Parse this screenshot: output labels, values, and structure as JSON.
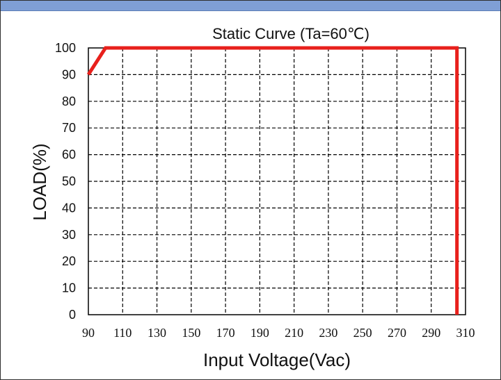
{
  "chart_data": {
    "type": "line",
    "title": "Static Curve (Ta=60℃)",
    "xlabel": "Input Voltage(Vac)",
    "ylabel": "LOAD(%)",
    "xlim": [
      90,
      310
    ],
    "ylim": [
      0,
      100
    ],
    "xticks": [
      90,
      110,
      130,
      150,
      170,
      190,
      210,
      230,
      250,
      270,
      290,
      310
    ],
    "yticks": [
      0,
      10,
      20,
      30,
      40,
      50,
      60,
      70,
      80,
      90,
      100
    ],
    "grid": true,
    "series": [
      {
        "color": "#e8201c",
        "points": [
          [
            90,
            90
          ],
          [
            100,
            100
          ],
          [
            305,
            100
          ],
          [
            305,
            0
          ]
        ]
      }
    ]
  }
}
